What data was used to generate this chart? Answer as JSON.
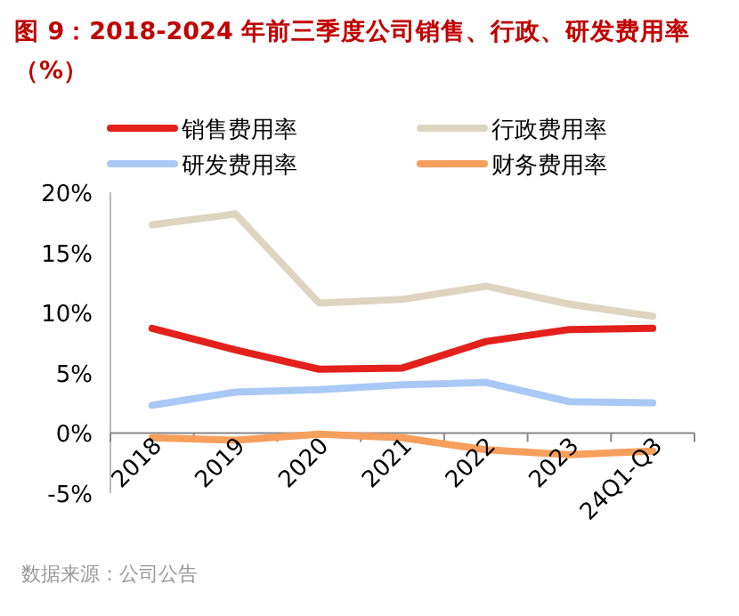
{
  "chart_data": {
    "type": "line",
    "title": "图 9：2018-2024 年前三季度公司销售、行政、研发费用率（%）",
    "categories": [
      "2018",
      "2019",
      "2020",
      "2021",
      "2022",
      "2023",
      "24Q1-Q3"
    ],
    "series": [
      {
        "name": "销售费用率",
        "color": "#e3201b",
        "values": [
          8.7,
          6.9,
          5.3,
          5.4,
          7.6,
          8.6,
          8.7
        ]
      },
      {
        "name": "行政费用率",
        "color": "#ddd5c0",
        "values": [
          17.3,
          18.2,
          10.8,
          11.1,
          12.2,
          10.7,
          9.7
        ]
      },
      {
        "name": "研发费用率",
        "color": "#a9c8f5",
        "values": [
          2.3,
          3.4,
          3.6,
          4.0,
          4.2,
          2.6,
          2.5
        ]
      },
      {
        "name": "财务费用率",
        "color": "#f79f5c",
        "values": [
          -0.4,
          -0.6,
          -0.1,
          -0.4,
          -1.4,
          -1.8,
          -1.5
        ]
      }
    ],
    "ylim": [
      -5,
      20
    ],
    "yticks": [
      {
        "value": -5,
        "label": "-5%"
      },
      {
        "value": 0,
        "label": "0%"
      },
      {
        "value": 5,
        "label": "5%"
      },
      {
        "value": 10,
        "label": "10%"
      },
      {
        "value": 15,
        "label": "15%"
      },
      {
        "value": 20,
        "label": "20%"
      }
    ],
    "legend": "top",
    "grid": false,
    "marker": "none",
    "line_style": "solid",
    "annotations": [
      "数据来源：公司公告"
    ]
  }
}
